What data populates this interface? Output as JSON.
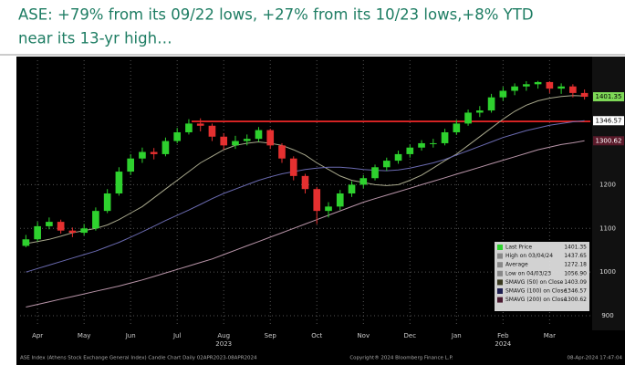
{
  "chart_data": {
    "type": "candlestick",
    "title_lines": [
      "ASE: +79% from its 09/22 lows, +27% from its 10/23 lows,+8% YTD",
      "near its 13-yr high…"
    ],
    "categories": [
      null,
      "Apr",
      null,
      null,
      null,
      "May",
      null,
      null,
      null,
      "Jun",
      null,
      null,
      null,
      "Jul",
      null,
      null,
      null,
      "Aug",
      null,
      null,
      null,
      "Sep",
      null,
      null,
      null,
      "Oct",
      null,
      null,
      null,
      "Nov",
      null,
      null,
      null,
      "Dec",
      null,
      null,
      null,
      "Jan",
      null,
      null,
      null,
      "Feb",
      null,
      null,
      null,
      "Mar",
      null,
      null,
      null
    ],
    "year_labels": [
      {
        "label": "2023",
        "category": "Aug"
      },
      {
        "label": "2024",
        "category": "Feb"
      }
    ],
    "candles": {
      "up_color": "#2ed12e",
      "down_color": "#e53030",
      "open": [
        1060,
        1075,
        1105,
        1115,
        1095,
        1090,
        1100,
        1140,
        1180,
        1230,
        1260,
        1275,
        1270,
        1300,
        1320,
        1340,
        1335,
        1310,
        1290,
        1300,
        1305,
        1325,
        1290,
        1260,
        1220,
        1190,
        1140,
        1150,
        1180,
        1200,
        1215,
        1240,
        1255,
        1270,
        1285,
        1295,
        1295,
        1320,
        1340,
        1365,
        1370,
        1400,
        1415,
        1425,
        1430,
        1435,
        1420,
        1425,
        1410
      ],
      "high": [
        1085,
        1115,
        1125,
        1120,
        1102,
        1110,
        1148,
        1190,
        1240,
        1270,
        1285,
        1284,
        1308,
        1330,
        1350,
        1352,
        1340,
        1318,
        1312,
        1315,
        1332,
        1328,
        1295,
        1265,
        1225,
        1195,
        1160,
        1188,
        1208,
        1222,
        1246,
        1262,
        1278,
        1292,
        1302,
        1305,
        1328,
        1348,
        1372,
        1380,
        1408,
        1424,
        1432,
        1437,
        1437.65,
        1437,
        1432,
        1430,
        1418
      ],
      "low": [
        1056.9,
        1070,
        1098,
        1088,
        1080,
        1084,
        1095,
        1135,
        1175,
        1222,
        1250,
        1258,
        1265,
        1295,
        1315,
        1322,
        1300,
        1280,
        1282,
        1290,
        1298,
        1282,
        1250,
        1210,
        1180,
        1110,
        1125,
        1142,
        1172,
        1192,
        1210,
        1232,
        1248,
        1262,
        1278,
        1285,
        1290,
        1314,
        1335,
        1355,
        1365,
        1392,
        1405,
        1415,
        1420,
        1410,
        1408,
        1400,
        1395
      ],
      "close": [
        1075,
        1105,
        1115,
        1095,
        1090,
        1100,
        1140,
        1180,
        1230,
        1260,
        1275,
        1270,
        1300,
        1320,
        1340,
        1335,
        1310,
        1290,
        1300,
        1305,
        1325,
        1290,
        1260,
        1220,
        1190,
        1140,
        1150,
        1180,
        1200,
        1215,
        1240,
        1255,
        1270,
        1285,
        1295,
        1295,
        1320,
        1340,
        1365,
        1370,
        1400,
        1415,
        1425,
        1430,
        1435,
        1420,
        1425,
        1410,
        1401.35
      ]
    },
    "series": [
      {
        "name": "SMAVG (50)  on Close",
        "color": "#a8a88c",
        "legend_value": 1403.09,
        "values": [
          1065,
          1070,
          1075,
          1082,
          1090,
          1095,
          1100,
          1108,
          1120,
          1135,
          1150,
          1170,
          1190,
          1210,
          1230,
          1250,
          1265,
          1280,
          1290,
          1295,
          1298,
          1295,
          1290,
          1280,
          1268,
          1250,
          1235,
          1220,
          1210,
          1205,
          1200,
          1198,
          1200,
          1210,
          1222,
          1238,
          1255,
          1270,
          1290,
          1310,
          1330,
          1350,
          1368,
          1382,
          1392,
          1398,
          1402,
          1404,
          1403.09
        ]
      },
      {
        "name": "SMAVG (100)  on Close",
        "color": "#6a6ab0",
        "legend_value": 1346.57,
        "values": [
          1000,
          1008,
          1016,
          1024,
          1032,
          1040,
          1048,
          1058,
          1068,
          1080,
          1092,
          1105,
          1118,
          1130,
          1142,
          1155,
          1168,
          1180,
          1190,
          1200,
          1210,
          1218,
          1225,
          1230,
          1235,
          1238,
          1240,
          1240,
          1238,
          1235,
          1233,
          1232,
          1234,
          1238,
          1244,
          1250,
          1258,
          1268,
          1278,
          1288,
          1298,
          1308,
          1316,
          1324,
          1330,
          1336,
          1340,
          1344,
          1346.57
        ]
      },
      {
        "name": "SMAVG (200)  on Close",
        "color": "#b894a8",
        "legend_value": 1300.62,
        "values": [
          920,
          926,
          932,
          938,
          944,
          950,
          956,
          962,
          968,
          975,
          982,
          990,
          998,
          1006,
          1014,
          1022,
          1030,
          1040,
          1050,
          1060,
          1070,
          1080,
          1090,
          1100,
          1110,
          1120,
          1130,
          1140,
          1150,
          1160,
          1168,
          1176,
          1184,
          1192,
          1200,
          1208,
          1216,
          1224,
          1232,
          1240,
          1248,
          1256,
          1264,
          1272,
          1280,
          1286,
          1292,
          1296,
          1300.62
        ]
      }
    ],
    "legend": [
      {
        "name": "Last Price",
        "value": 1401.35,
        "color": "#2ed12e"
      },
      {
        "name": "High on 03/04/24",
        "value": 1437.65,
        "color": "#888888"
      },
      {
        "name": "Average",
        "value": 1272.18,
        "color": "#888888"
      },
      {
        "name": "Low on 04/03/23",
        "value": 1056.9,
        "value_label": "1056.90",
        "color": "#888888"
      }
    ],
    "legend_swatches": [
      "#3a3a20",
      "#1e1e50",
      "#4a1a30"
    ],
    "hline": {
      "value": 1345,
      "color": "#ff2a2a"
    },
    "ylim": [
      875,
      1485
    ],
    "yticks": [
      900,
      1000,
      1100,
      1200
    ],
    "grid": true,
    "footer": {
      "left": "ASE Index (Athens Stock Exchange General Index) Candle Chart  Daily 02APR2023-08APR2024",
      "center": "Copyright® 2024 Bloomberg Finance L.P.",
      "right": "08-Apr-2024 17:47:04"
    }
  }
}
